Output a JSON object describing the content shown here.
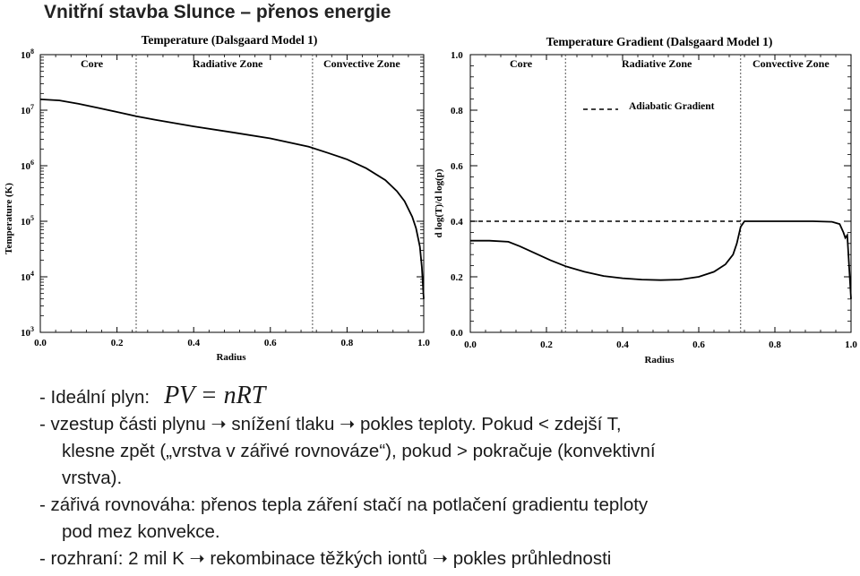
{
  "slide": {
    "title": "Vnitřní stavba Slunce – přenos energie"
  },
  "chart_data": [
    {
      "type": "line",
      "title": "Temperature (Dalsgaard Model 1)",
      "xlabel": "Radius",
      "ylabel": "Temperature (K)",
      "yscale": "log",
      "xlim": [
        0,
        1.0
      ],
      "ylim": [
        1000,
        100000000
      ],
      "xticks": [
        "0.0",
        "0.2",
        "0.4",
        "0.6",
        "0.8",
        "1.0"
      ],
      "yticks": [
        {
          "base": "10",
          "exp": "3"
        },
        {
          "base": "10",
          "exp": "4"
        },
        {
          "base": "10",
          "exp": "5"
        },
        {
          "base": "10",
          "exp": "6"
        },
        {
          "base": "10",
          "exp": "7"
        },
        {
          "base": "10",
          "exp": "8"
        }
      ],
      "zones": [
        "Core",
        "Radiative Zone",
        "Convective Zone"
      ],
      "boundaries": [
        0.25,
        0.71
      ],
      "series": [
        {
          "name": "Temperature",
          "x": [
            0.0,
            0.05,
            0.1,
            0.15,
            0.2,
            0.25,
            0.3,
            0.4,
            0.5,
            0.6,
            0.7,
            0.75,
            0.8,
            0.85,
            0.9,
            0.93,
            0.95,
            0.97,
            0.98,
            0.99,
            0.995,
            1.0
          ],
          "y": [
            15700000,
            15000000,
            13000000,
            11000000,
            9300000,
            7800000,
            6700000,
            5100000,
            4000000,
            3100000,
            2200000,
            1700000,
            1300000,
            900000,
            550000,
            350000,
            230000,
            120000,
            75000,
            35000,
            15000,
            4000
          ]
        }
      ]
    },
    {
      "type": "line",
      "title": "Temperature Gradient (Dalsgaard Model 1)",
      "xlabel": "Radius",
      "ylabel": "d log(T)/d log(p)",
      "xlim": [
        0,
        1.0
      ],
      "ylim": [
        0,
        1.0
      ],
      "xticks": [
        "0.0",
        "0.2",
        "0.4",
        "0.6",
        "0.8",
        "1.0"
      ],
      "yticks": [
        "0.0",
        "0.2",
        "0.4",
        "0.6",
        "0.8",
        "1.0"
      ],
      "zones": [
        "Core",
        "Radiative Zone",
        "Convective Zone"
      ],
      "boundaries": [
        0.25,
        0.71
      ],
      "legend": "Adiabatic Gradient",
      "adiabatic": 0.4,
      "series": [
        {
          "name": "Gradient",
          "x": [
            0.0,
            0.05,
            0.1,
            0.13,
            0.17,
            0.21,
            0.25,
            0.3,
            0.35,
            0.4,
            0.45,
            0.5,
            0.55,
            0.6,
            0.64,
            0.67,
            0.69,
            0.7,
            0.71,
            0.72,
            0.75,
            0.8,
            0.85,
            0.9,
            0.95,
            0.97,
            0.98,
            0.985,
            0.99,
            1.0
          ],
          "y": [
            0.33,
            0.33,
            0.326,
            0.31,
            0.285,
            0.26,
            0.238,
            0.218,
            0.203,
            0.195,
            0.19,
            0.188,
            0.19,
            0.2,
            0.218,
            0.245,
            0.28,
            0.32,
            0.38,
            0.4,
            0.4,
            0.4,
            0.4,
            0.4,
            0.398,
            0.39,
            0.36,
            0.34,
            0.35,
            0.12
          ]
        }
      ]
    }
  ],
  "bullets": {
    "l1": "- Ideální plyn:",
    "formula": "PV = nRT",
    "l2a": "- vzestup části plynu",
    "l2b": "snížení tlaku",
    "l2c": "pokles teploty. Pokud < zdejší T,",
    "l3": "klesne zpět („vrstva v zářivé rovnováze“), pokud > pokračuje (konvektivní",
    "l4": "vrstva).",
    "l5": "- zářivá rovnováha: přenos tepla záření stačí na potlačení gradientu teploty",
    "l6": "pod mez konvekce.",
    "l7a": "- rozhraní: 2 mil K",
    "l7b": "rekombinace těžkých iontů",
    "l7c": "pokles průhlednosti"
  }
}
